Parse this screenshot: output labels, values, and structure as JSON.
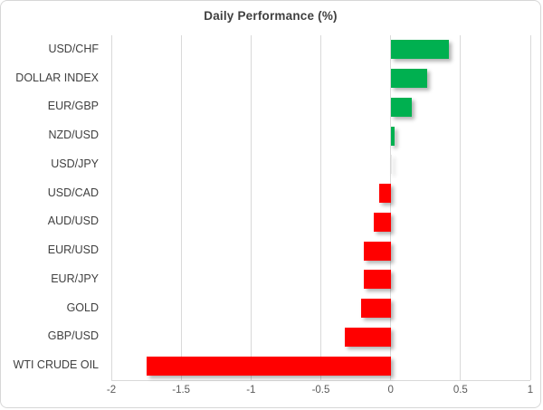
{
  "chart_data": {
    "type": "bar",
    "orientation": "horizontal",
    "title": "Daily Performance (%)",
    "categories": [
      "USD/CHF",
      "DOLLAR INDEX",
      "EUR/GBP",
      "NZD/USD",
      "USD/JPY",
      "USD/CAD",
      "AUD/USD",
      "EUR/USD",
      "EUR/JPY",
      "GOLD",
      "GBP/USD",
      "WTI CRUDE OIL"
    ],
    "values": [
      0.42,
      0.26,
      0.15,
      0.03,
      0.0,
      -0.08,
      -0.12,
      -0.19,
      -0.19,
      -0.21,
      -0.33,
      -1.75
    ],
    "xlabel": "",
    "ylabel": "",
    "xlim": [
      -2,
      1
    ],
    "xticks": [
      -2,
      -1.5,
      -1,
      -0.5,
      0,
      0.5,
      1
    ],
    "xtick_labels": [
      "-2",
      "-1.5",
      "-1",
      "-0.5",
      "0",
      "0.5",
      "1"
    ],
    "grid": true,
    "legend": false,
    "colors": {
      "positive": "#00B050",
      "negative": "#FF0000",
      "zero": "#E8E8E8",
      "grid": "#D9D9D9",
      "title_text": "#404040",
      "tick_text": "#595959",
      "category_text": "#404040"
    }
  }
}
